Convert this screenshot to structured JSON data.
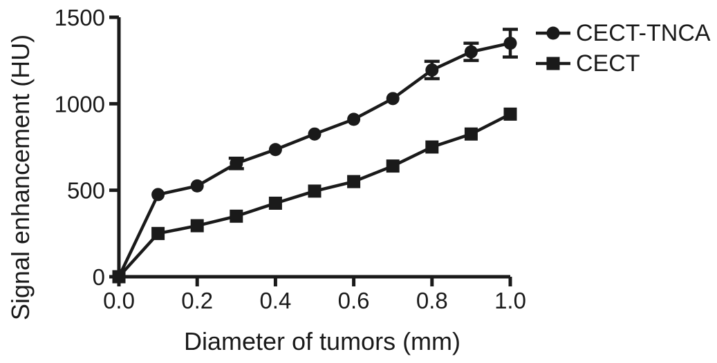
{
  "chart": {
    "y_axis_title": "Signal enhancement (HU)",
    "x_axis_title": "Diameter of tumors (mm)"
  },
  "legend": {
    "items": [
      {
        "label": "CECT-TNCA",
        "marker": "circle"
      },
      {
        "label": "CECT",
        "marker": "square"
      }
    ]
  },
  "chart_data": {
    "type": "line",
    "title": "",
    "xlabel": "Diameter of tumors (mm)",
    "ylabel": "Signal enhancement (HU)",
    "x": [
      0.0,
      0.1,
      0.2,
      0.3,
      0.4,
      0.5,
      0.6,
      0.7,
      0.8,
      0.9,
      1.0
    ],
    "series": [
      {
        "name": "CECT-TNCA",
        "marker": "circle",
        "values": [
          0,
          475,
          525,
          655,
          735,
          825,
          910,
          1030,
          1195,
          1300,
          1350
        ],
        "errors": [
          0,
          0,
          0,
          30,
          0,
          0,
          0,
          0,
          50,
          50,
          80
        ]
      },
      {
        "name": "CECT",
        "marker": "square",
        "values": [
          0,
          250,
          295,
          350,
          425,
          495,
          550,
          640,
          750,
          825,
          940
        ],
        "errors": [
          0,
          0,
          0,
          0,
          0,
          0,
          0,
          0,
          0,
          0,
          0
        ]
      }
    ],
    "xlim": [
      0.0,
      1.0
    ],
    "ylim": [
      0,
      1500
    ],
    "xticks": {
      "values": [
        0.0,
        0.2,
        0.4,
        0.6,
        0.8,
        1.0
      ],
      "labels": [
        "0.0",
        "0.2",
        "0.4",
        "0.6",
        "0.8",
        "1.0"
      ]
    },
    "yticks": {
      "values": [
        0,
        500,
        1000,
        1500
      ],
      "labels": [
        "0",
        "500",
        "1000",
        "1500"
      ]
    },
    "grid": false,
    "legend_position": "top-right",
    "line_color": "#1a1a1a",
    "background": "#ffffff"
  }
}
